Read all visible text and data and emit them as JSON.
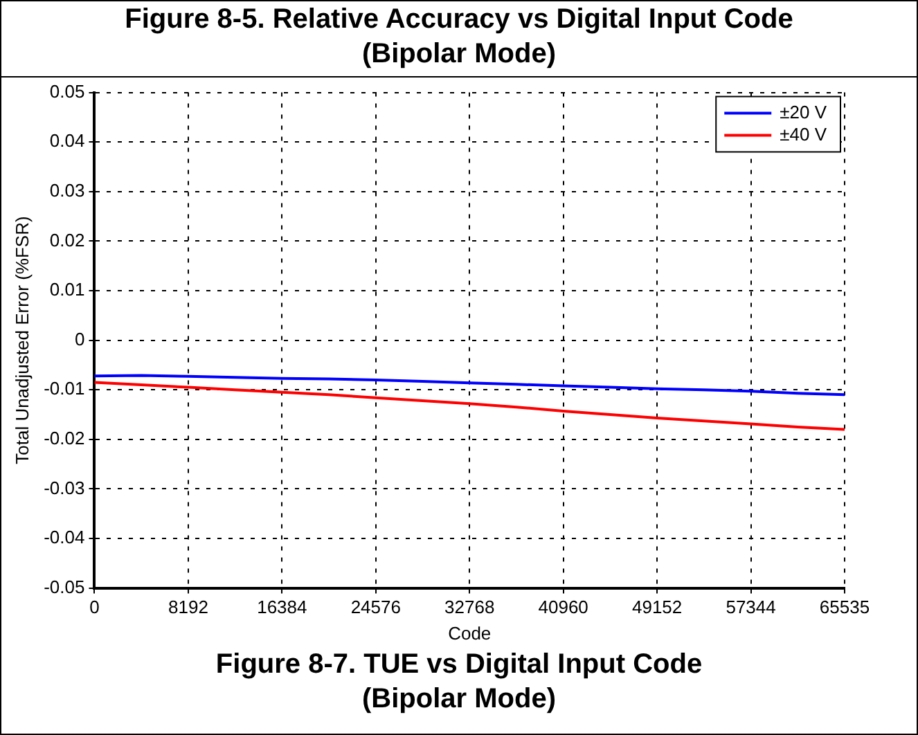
{
  "chart_data": {
    "type": "line",
    "title": "Figure 8-7. TUE vs Digital Input Code\n(Bipolar Mode)",
    "annotations": [
      "Figure 8-5. Relative Accuracy vs Digital Input Code\n(Bipolar Mode)"
    ],
    "xlabel": "Code",
    "ylabel": "Total Unadjusted Error (%FSR)",
    "x": [
      0,
      4096,
      8192,
      12288,
      16384,
      20480,
      24576,
      28672,
      32768,
      36864,
      40960,
      45056,
      49152,
      53248,
      57344,
      61440,
      65535
    ],
    "series": [
      {
        "name": "±20 V",
        "color": "#0000ff",
        "values": [
          -0.0072,
          -0.0071,
          -0.0073,
          -0.0075,
          -0.0077,
          -0.0078,
          -0.008,
          -0.0083,
          -0.0086,
          -0.0089,
          -0.0092,
          -0.0095,
          -0.0098,
          -0.01,
          -0.0103,
          -0.0107,
          -0.011
        ]
      },
      {
        "name": "±40 V",
        "color": "#ff0000",
        "values": [
          -0.0085,
          -0.009,
          -0.0095,
          -0.01,
          -0.0105,
          -0.011,
          -0.0116,
          -0.0122,
          -0.0128,
          -0.0135,
          -0.0143,
          -0.015,
          -0.0157,
          -0.0163,
          -0.0169,
          -0.0175,
          -0.018
        ]
      }
    ],
    "xlim": [
      0,
      65535
    ],
    "xticks": [
      0,
      8192,
      16384,
      24576,
      32768,
      40960,
      49152,
      57344,
      65535
    ],
    "ylim": [
      -0.05,
      0.05
    ],
    "yticks": [
      -0.05,
      -0.04,
      -0.03,
      -0.02,
      -0.01,
      0,
      0.01,
      0.02,
      0.03,
      0.04,
      0.05
    ],
    "grid": true,
    "legend": "top right"
  }
}
